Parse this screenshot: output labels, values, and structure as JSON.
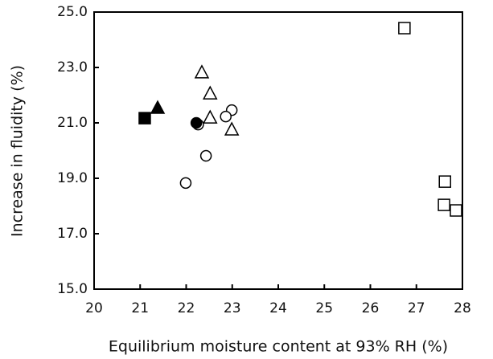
{
  "chart_data": {
    "type": "scatter",
    "x_label": "Equilibrium moisture content at 93% RH (%)",
    "y_label": "Increase in fluidity (%)",
    "xlim": [
      20,
      28
    ],
    "xticks": [
      20,
      21,
      22,
      23,
      24,
      25,
      26,
      27,
      28
    ],
    "ylim": [
      15,
      25
    ],
    "yticks": [
      {
        "value": 15,
        "label": "15.0"
      },
      {
        "value": 17,
        "label": "17.0"
      },
      {
        "value": 19,
        "label": "19.0"
      },
      {
        "value": 21,
        "label": "21.0"
      },
      {
        "value": 23,
        "label": "23.0"
      },
      {
        "value": 25,
        "label": "25.0"
      }
    ],
    "grid": false,
    "series": [
      {
        "marker": "square",
        "filled": false,
        "color": "#000000",
        "x": [
          26.74,
          27.62,
          27.6,
          27.86
        ],
        "values": [
          24.42,
          18.88,
          18.04,
          17.84
        ]
      },
      {
        "marker": "triangle",
        "filled": false,
        "color": "#000000",
        "x": [
          22.34,
          22.52,
          22.52,
          22.99
        ],
        "values": [
          22.8,
          22.04,
          21.17,
          20.74
        ]
      },
      {
        "marker": "circle",
        "filled": false,
        "color": "#000000",
        "x": [
          22.99,
          22.86,
          22.43,
          21.99,
          22.26
        ],
        "values": [
          21.46,
          21.23,
          19.81,
          18.83,
          20.94
        ]
      },
      {
        "marker": "square",
        "filled": true,
        "color": "#000000",
        "x": [
          21.1
        ],
        "values": [
          21.17
        ]
      },
      {
        "marker": "triangle",
        "filled": true,
        "color": "#000000",
        "x": [
          21.38
        ],
        "values": [
          21.52
        ]
      },
      {
        "marker": "circle",
        "filled": true,
        "color": "#000000",
        "x": [
          22.22
        ],
        "values": [
          21.0
        ]
      }
    ]
  }
}
